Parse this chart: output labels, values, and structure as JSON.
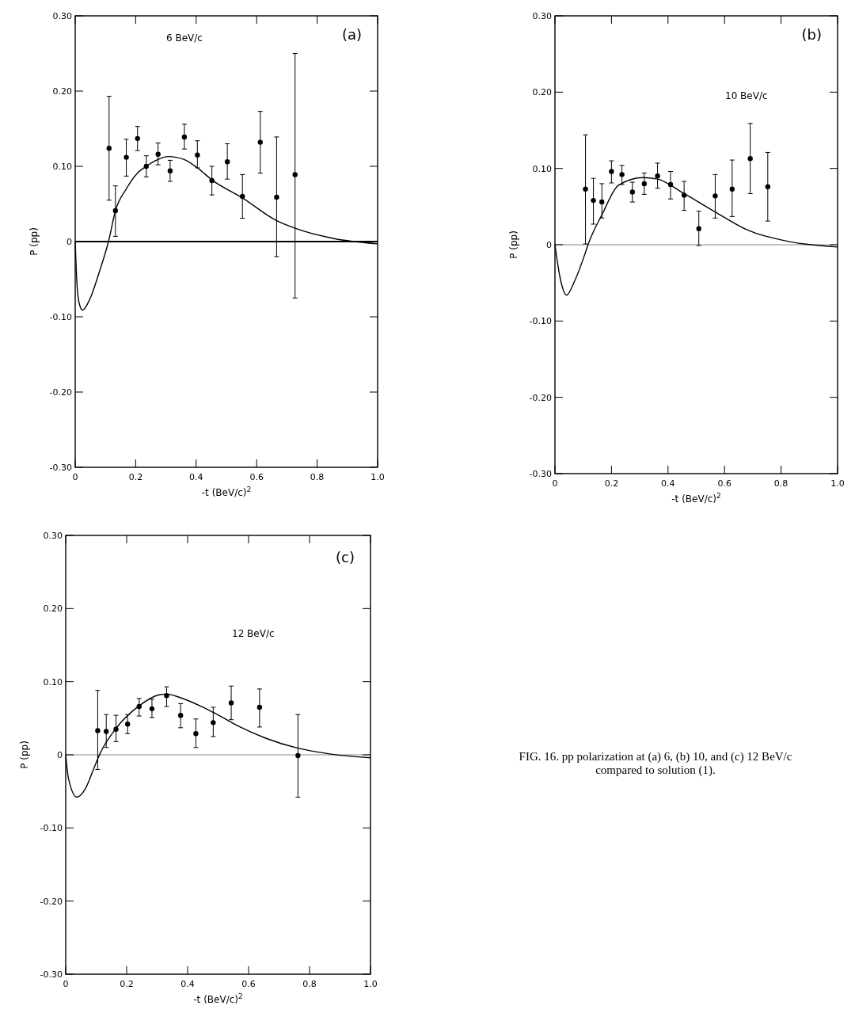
{
  "chart_data": [
    {
      "type": "scatter",
      "xlabel": "-t (BeV/c)$^{2}$",
      "ylabel": "P (pp)",
      "annotations": [
        "(a)",
        "6 BeV/c"
      ],
      "xlim": [
        0,
        1
      ],
      "ylim": [
        -0.3,
        0.3
      ],
      "xticks": [
        {
          "value": 0,
          "label": "0"
        },
        {
          "value": 0.2,
          "label": "0.2"
        },
        {
          "value": 0.4,
          "label": "0.4"
        },
        {
          "value": 0.6,
          "label": "0.6"
        },
        {
          "value": 0.8,
          "label": "0.8"
        },
        {
          "value": 1,
          "label": "1.0"
        }
      ],
      "yticks": [
        {
          "value": -0.3,
          "label": "-0.30"
        },
        {
          "value": -0.2,
          "label": "-0.20"
        },
        {
          "value": -0.1,
          "label": "-0.10"
        },
        {
          "value": 0,
          "label": "0"
        },
        {
          "value": 0.1,
          "label": "0.10"
        },
        {
          "value": 0.2,
          "label": "0.20"
        },
        {
          "value": 0.3,
          "label": "0.30"
        }
      ],
      "ref_lines": [
        {
          "axis": "y",
          "value": 0,
          "color": "#000000"
        }
      ],
      "marker": "circle",
      "grid": false,
      "legend": false,
      "series": [
        {
          "type": "scatter",
          "color": "#000000",
          "x": [
            0.112,
            0.133,
            0.169,
            0.206,
            0.235,
            0.274,
            0.314,
            0.361,
            0.404,
            0.452,
            0.503,
            0.553,
            0.612,
            0.666,
            0.727
          ],
          "values": [
            0.124,
            0.041,
            0.112,
            0.137,
            0.1,
            0.116,
            0.094,
            0.139,
            0.115,
            0.081,
            0.106,
            0.06,
            0.132,
            0.059,
            0.089
          ],
          "errors": [
            [
              0.055,
              0.193
            ],
            [
              0.007,
              0.074
            ],
            [
              0.087,
              0.136
            ],
            [
              0.121,
              0.153
            ],
            [
              0.086,
              0.114
            ],
            [
              0.102,
              0.131
            ],
            [
              0.08,
              0.108
            ],
            [
              0.123,
              0.156
            ],
            [
              0.098,
              0.134
            ],
            [
              0.062,
              0.1
            ],
            [
              0.083,
              0.13
            ],
            [
              0.031,
              0.089
            ],
            [
              0.091,
              0.173
            ],
            [
              -0.02,
              0.139
            ],
            [
              -0.075,
              0.25
            ]
          ]
        },
        {
          "type": "line",
          "color": "#000000",
          "marker": "none",
          "x": [
            0,
            0.005,
            0.012,
            0.024,
            0.05,
            0.08,
            0.11,
            0.133,
            0.169,
            0.206,
            0.235,
            0.274,
            0.307,
            0.36,
            0.404,
            0.452,
            0.553,
            0.665,
            0.725,
            0.856,
            1.0
          ],
          "values": [
            0,
            -0.05,
            -0.08,
            -0.091,
            -0.075,
            -0.04,
            0,
            0.041,
            0.07,
            0.091,
            0.1,
            0.109,
            0.113,
            0.109,
            0.098,
            0.082,
            0.058,
            0.028,
            0.018,
            0.004,
            -0.003
          ]
        }
      ]
    },
    {
      "type": "scatter",
      "xlabel": "-t (BeV/c)$^{2}$",
      "ylabel": "P (pp)",
      "annotations": [
        "(b)",
        "10 BeV/c"
      ],
      "xlim": [
        0,
        1
      ],
      "ylim": [
        -0.3,
        0.3
      ],
      "xticks": [
        {
          "value": 0,
          "label": "0"
        },
        {
          "value": 0.2,
          "label": "0.2"
        },
        {
          "value": 0.4,
          "label": "0.4"
        },
        {
          "value": 0.6,
          "label": "0.6"
        },
        {
          "value": 0.8,
          "label": "0.8"
        },
        {
          "value": 1,
          "label": "1.0"
        }
      ],
      "yticks": [
        {
          "value": -0.3,
          "label": "-0.30"
        },
        {
          "value": -0.2,
          "label": "-0.20"
        },
        {
          "value": -0.1,
          "label": "-0.10"
        },
        {
          "value": 0,
          "label": "0"
        },
        {
          "value": 0.1,
          "label": "0.10"
        },
        {
          "value": 0.2,
          "label": "0.20"
        },
        {
          "value": 0.3,
          "label": "0.30"
        }
      ],
      "ref_lines": [
        {
          "axis": "y",
          "value": 0,
          "color": "#888888"
        }
      ],
      "marker": "circle",
      "grid": false,
      "legend": false,
      "series": [
        {
          "type": "scatter",
          "color": "#000000",
          "x": [
            0.108,
            0.136,
            0.166,
            0.2,
            0.237,
            0.274,
            0.316,
            0.363,
            0.409,
            0.457,
            0.509,
            0.567,
            0.627,
            0.691,
            0.753
          ],
          "values": [
            0.073,
            0.058,
            0.056,
            0.096,
            0.092,
            0.069,
            0.08,
            0.09,
            0.079,
            0.065,
            0.021,
            0.064,
            0.073,
            0.113,
            0.076
          ],
          "errors": [
            [
              0.001,
              0.144
            ],
            [
              0.027,
              0.087
            ],
            [
              0.035,
              0.08
            ],
            [
              0.081,
              0.11
            ],
            [
              0.079,
              0.104
            ],
            [
              0.056,
              0.082
            ],
            [
              0.066,
              0.094
            ],
            [
              0.074,
              0.107
            ],
            [
              0.06,
              0.096
            ],
            [
              0.045,
              0.083
            ],
            [
              -0.001,
              0.044
            ],
            [
              0.035,
              0.092
            ],
            [
              0.037,
              0.111
            ],
            [
              0.067,
              0.159
            ],
            [
              0.031,
              0.121
            ]
          ]
        },
        {
          "type": "line",
          "color": "#000000",
          "marker": "none",
          "x": [
            0,
            0.017,
            0.041,
            0.069,
            0.108,
            0.117,
            0.166,
            0.225,
            0.311,
            0.363,
            0.457,
            0.567,
            0.683,
            0.83,
            1.0
          ],
          "values": [
            0,
            -0.041,
            -0.066,
            -0.048,
            -0.01,
            0,
            0.039,
            0.078,
            0.088,
            0.086,
            0.067,
            0.043,
            0.019,
            0.004,
            -0.003
          ]
        }
      ]
    },
    {
      "type": "scatter",
      "xlabel": "-t (BeV/c)$^{2}$",
      "ylabel": "P (pp)",
      "annotations": [
        "(c)",
        "12 BeV/c",
        "FIG. 16. pp polarization at (a) 6, (b) 10, and (c) 12 BeV/c compared to solution (1)."
      ],
      "xlim": [
        0,
        1
      ],
      "ylim": [
        -0.3,
        0.3
      ],
      "xticks": [
        {
          "value": 0,
          "label": "0"
        },
        {
          "value": 0.2,
          "label": "0.2"
        },
        {
          "value": 0.4,
          "label": "0.4"
        },
        {
          "value": 0.6,
          "label": "0.6"
        },
        {
          "value": 0.8,
          "label": "0.8"
        },
        {
          "value": 1,
          "label": "1.0"
        }
      ],
      "yticks": [
        {
          "value": -0.3,
          "label": "-0.30"
        },
        {
          "value": -0.2,
          "label": "-0.20"
        },
        {
          "value": -0.1,
          "label": "-0.10"
        },
        {
          "value": 0,
          "label": "0"
        },
        {
          "value": 0.1,
          "label": "0.10"
        },
        {
          "value": 0.2,
          "label": "0.20"
        },
        {
          "value": 0.3,
          "label": "0.30"
        }
      ],
      "ref_lines": [
        {
          "axis": "y",
          "value": 0,
          "color": "#888888"
        }
      ],
      "marker": "circle",
      "grid": false,
      "legend": false,
      "series": [
        {
          "type": "scatter",
          "color": "#000000",
          "x": [
            0.105,
            0.133,
            0.165,
            0.203,
            0.241,
            0.283,
            0.331,
            0.377,
            0.427,
            0.484,
            0.543,
            0.636,
            0.762
          ],
          "values": [
            0.033,
            0.032,
            0.035,
            0.042,
            0.066,
            0.063,
            0.081,
            0.054,
            0.029,
            0.044,
            0.071,
            0.065,
            -0.001
          ],
          "errors": [
            [
              -0.02,
              0.088
            ],
            [
              0.01,
              0.055
            ],
            [
              0.018,
              0.054
            ],
            [
              0.029,
              0.055
            ],
            [
              0.053,
              0.077
            ],
            [
              0.051,
              0.076
            ],
            [
              0.066,
              0.093
            ],
            [
              0.037,
              0.07
            ],
            [
              0.01,
              0.049
            ],
            [
              0.025,
              0.065
            ],
            [
              0.048,
              0.094
            ],
            [
              0.038,
              0.09
            ],
            [
              -0.058,
              0.055
            ]
          ]
        },
        {
          "type": "line",
          "color": "#000000",
          "marker": "none",
          "x": [
            0,
            0.009,
            0.037,
            0.065,
            0.091,
            0.113,
            0.165,
            0.241,
            0.307,
            0.331,
            0.377,
            0.484,
            0.567,
            0.654,
            0.762,
            0.87,
            1.0
          ],
          "values": [
            0,
            -0.032,
            -0.058,
            -0.046,
            -0.02,
            0.002,
            0.036,
            0.067,
            0.082,
            0.083,
            0.078,
            0.058,
            0.039,
            0.023,
            0.009,
            0.001,
            -0.004
          ]
        }
      ]
    }
  ]
}
